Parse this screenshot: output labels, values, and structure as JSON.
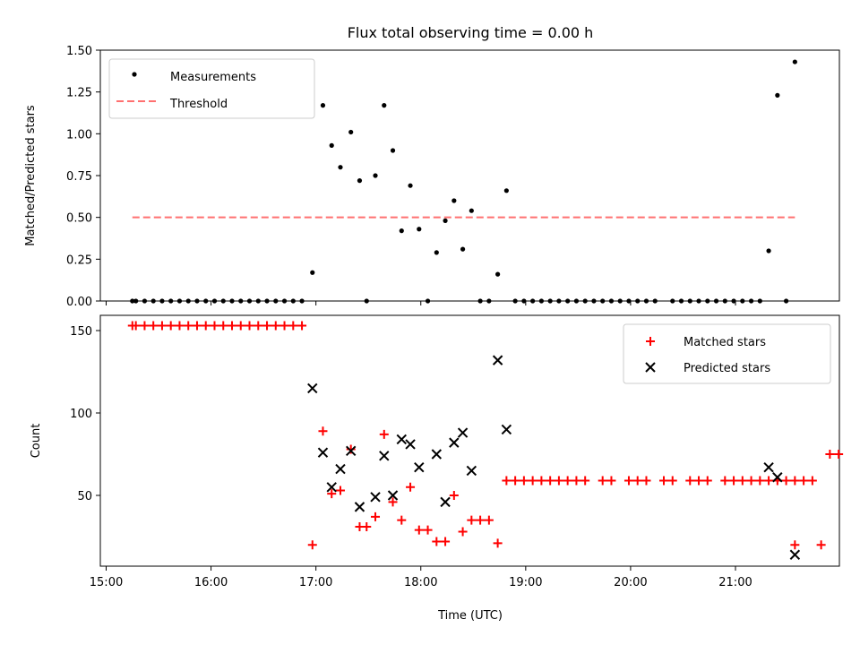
{
  "chart_data": [
    {
      "type": "scatter",
      "title": "Flux total observing time = 0.00 h",
      "xlabel": "",
      "ylabel": "Matched/Predicted stars",
      "xlim": [
        "15:00",
        "22:00"
      ],
      "ylim": [
        0,
        1.5
      ],
      "x_ticks": [
        "15:00",
        "16:00",
        "17:00",
        "18:00",
        "19:00",
        "20:00",
        "21:00"
      ],
      "y_ticks": [
        "0.00",
        "0.25",
        "0.50",
        "0.75",
        "1.00",
        "1.25",
        "1.50"
      ],
      "legend": {
        "position": "top-left",
        "entries": [
          "Measurements",
          "Threshold"
        ]
      },
      "series": [
        {
          "name": "Measurements",
          "marker": "dot",
          "color": "#000000",
          "points": [
            [
              "15:15",
              0
            ],
            [
              "15:17",
              0
            ],
            [
              "15:22",
              0
            ],
            [
              "15:27",
              0
            ],
            [
              "15:32",
              0
            ],
            [
              "15:37",
              0
            ],
            [
              "15:42",
              0
            ],
            [
              "15:47",
              0
            ],
            [
              "15:52",
              0
            ],
            [
              "15:57",
              0
            ],
            [
              "16:02",
              0
            ],
            [
              "16:07",
              0
            ],
            [
              "16:12",
              0
            ],
            [
              "16:17",
              0
            ],
            [
              "16:22",
              0
            ],
            [
              "16:27",
              0
            ],
            [
              "16:32",
              0
            ],
            [
              "16:37",
              0
            ],
            [
              "16:42",
              0
            ],
            [
              "16:47",
              0
            ],
            [
              "16:52",
              0
            ],
            [
              "16:58",
              0.17
            ],
            [
              "17:04",
              1.17
            ],
            [
              "17:09",
              0.93
            ],
            [
              "17:14",
              0.8
            ],
            [
              "17:20",
              1.01
            ],
            [
              "17:25",
              0.72
            ],
            [
              "17:29",
              0
            ],
            [
              "17:34",
              0.75
            ],
            [
              "17:39",
              1.17
            ],
            [
              "17:44",
              0.9
            ],
            [
              "17:49",
              0.42
            ],
            [
              "17:54",
              0.69
            ],
            [
              "17:59",
              0.43
            ],
            [
              "18:04",
              0
            ],
            [
              "18:09",
              0.29
            ],
            [
              "18:14",
              0.48
            ],
            [
              "18:19",
              0.6
            ],
            [
              "18:24",
              0.31
            ],
            [
              "18:29",
              0.54
            ],
            [
              "18:34",
              0
            ],
            [
              "18:39",
              0
            ],
            [
              "18:44",
              0.16
            ],
            [
              "18:49",
              0.66
            ],
            [
              "18:54",
              0
            ],
            [
              "18:59",
              0
            ],
            [
              "19:04",
              0
            ],
            [
              "19:09",
              0
            ],
            [
              "19:14",
              0
            ],
            [
              "19:19",
              0
            ],
            [
              "19:24",
              0
            ],
            [
              "19:29",
              0
            ],
            [
              "19:34",
              0
            ],
            [
              "19:39",
              0
            ],
            [
              "19:44",
              0
            ],
            [
              "19:49",
              0
            ],
            [
              "19:54",
              0
            ],
            [
              "19:59",
              0
            ],
            [
              "20:04",
              0
            ],
            [
              "20:09",
              0
            ],
            [
              "20:14",
              0
            ],
            [
              "20:24",
              0
            ],
            [
              "20:29",
              0
            ],
            [
              "20:34",
              0
            ],
            [
              "20:39",
              0
            ],
            [
              "20:44",
              0
            ],
            [
              "20:49",
              0
            ],
            [
              "20:54",
              0
            ],
            [
              "20:59",
              0
            ],
            [
              "21:04",
              0
            ],
            [
              "21:09",
              0
            ],
            [
              "21:14",
              0
            ],
            [
              "21:19",
              0.3
            ],
            [
              "21:24",
              1.23
            ],
            [
              "21:29",
              0
            ],
            [
              "21:34",
              1.43
            ]
          ]
        },
        {
          "name": "Threshold",
          "marker": "dashed-line",
          "color": "#ff7070",
          "points": [
            [
              "15:15",
              0.5
            ],
            [
              "21:34",
              0.5
            ]
          ]
        }
      ]
    },
    {
      "type": "scatter",
      "title": "",
      "xlabel": "Time (UTC)",
      "ylabel": "Count",
      "xlim": [
        "15:00",
        "22:00"
      ],
      "ylim": [
        8,
        160
      ],
      "x_ticks": [
        "15:00",
        "16:00",
        "17:00",
        "18:00",
        "19:00",
        "20:00",
        "21:00"
      ],
      "y_ticks": [
        "50",
        "100",
        "150"
      ],
      "legend": {
        "position": "top-right",
        "entries": [
          "Matched stars",
          "Predicted stars"
        ]
      },
      "series": [
        {
          "name": "Matched stars",
          "marker": "plus",
          "color": "#ff0000",
          "points": [
            [
              "15:15",
              153
            ],
            [
              "15:17",
              153
            ],
            [
              "15:22",
              153
            ],
            [
              "15:27",
              153
            ],
            [
              "15:32",
              153
            ],
            [
              "15:37",
              153
            ],
            [
              "15:42",
              153
            ],
            [
              "15:47",
              153
            ],
            [
              "15:52",
              153
            ],
            [
              "15:57",
              153
            ],
            [
              "16:02",
              153
            ],
            [
              "16:07",
              153
            ],
            [
              "16:12",
              153
            ],
            [
              "16:17",
              153
            ],
            [
              "16:22",
              153
            ],
            [
              "16:27",
              153
            ],
            [
              "16:32",
              153
            ],
            [
              "16:37",
              153
            ],
            [
              "16:42",
              153
            ],
            [
              "16:47",
              153
            ],
            [
              "16:52",
              153
            ],
            [
              "16:58",
              20
            ],
            [
              "17:04",
              89
            ],
            [
              "17:09",
              51
            ],
            [
              "17:14",
              53
            ],
            [
              "17:20",
              78
            ],
            [
              "17:25",
              31
            ],
            [
              "17:29",
              31
            ],
            [
              "17:34",
              37
            ],
            [
              "17:39",
              87
            ],
            [
              "17:44",
              46
            ],
            [
              "17:49",
              35
            ],
            [
              "17:54",
              55
            ],
            [
              "17:59",
              29
            ],
            [
              "18:04",
              29
            ],
            [
              "18:09",
              22
            ],
            [
              "18:14",
              22
            ],
            [
              "18:19",
              50
            ],
            [
              "18:24",
              28
            ],
            [
              "18:29",
              35
            ],
            [
              "18:34",
              35
            ],
            [
              "18:39",
              35
            ],
            [
              "18:44",
              21
            ],
            [
              "18:49",
              59
            ],
            [
              "18:54",
              59
            ],
            [
              "18:59",
              59
            ],
            [
              "19:04",
              59
            ],
            [
              "19:09",
              59
            ],
            [
              "19:14",
              59
            ],
            [
              "19:19",
              59
            ],
            [
              "19:24",
              59
            ],
            [
              "19:29",
              59
            ],
            [
              "19:34",
              59
            ],
            [
              "19:44",
              59
            ],
            [
              "19:49",
              59
            ],
            [
              "19:59",
              59
            ],
            [
              "20:04",
              59
            ],
            [
              "20:09",
              59
            ],
            [
              "20:19",
              59
            ],
            [
              "20:24",
              59
            ],
            [
              "20:34",
              59
            ],
            [
              "20:39",
              59
            ],
            [
              "20:44",
              59
            ],
            [
              "20:54",
              59
            ],
            [
              "20:59",
              59
            ],
            [
              "21:04",
              59
            ],
            [
              "21:09",
              59
            ],
            [
              "21:14",
              59
            ],
            [
              "21:19",
              59
            ],
            [
              "21:24",
              59
            ],
            [
              "21:29",
              59
            ],
            [
              "21:34",
              59
            ],
            [
              "21:39",
              59
            ],
            [
              "21:44",
              59
            ],
            [
              "21:49",
              20
            ],
            [
              "21:54",
              75
            ],
            [
              "21:59",
              75
            ],
            [
              "21:34",
              20
            ]
          ]
        },
        {
          "name": "Predicted stars",
          "marker": "x",
          "color": "#000000",
          "points": [
            [
              "16:58",
              115
            ],
            [
              "17:04",
              76
            ],
            [
              "17:09",
              55
            ],
            [
              "17:14",
              66
            ],
            [
              "17:20",
              77
            ],
            [
              "17:25",
              43
            ],
            [
              "17:34",
              49
            ],
            [
              "17:39",
              74
            ],
            [
              "17:44",
              50
            ],
            [
              "17:49",
              84
            ],
            [
              "17:54",
              81
            ],
            [
              "17:59",
              67
            ],
            [
              "18:09",
              75
            ],
            [
              "18:14",
              46
            ],
            [
              "18:19",
              82
            ],
            [
              "18:24",
              88
            ],
            [
              "18:29",
              65
            ],
            [
              "18:44",
              132
            ],
            [
              "18:49",
              90
            ],
            [
              "21:19",
              67
            ],
            [
              "21:24",
              61
            ],
            [
              "21:34",
              14
            ]
          ]
        }
      ]
    }
  ]
}
